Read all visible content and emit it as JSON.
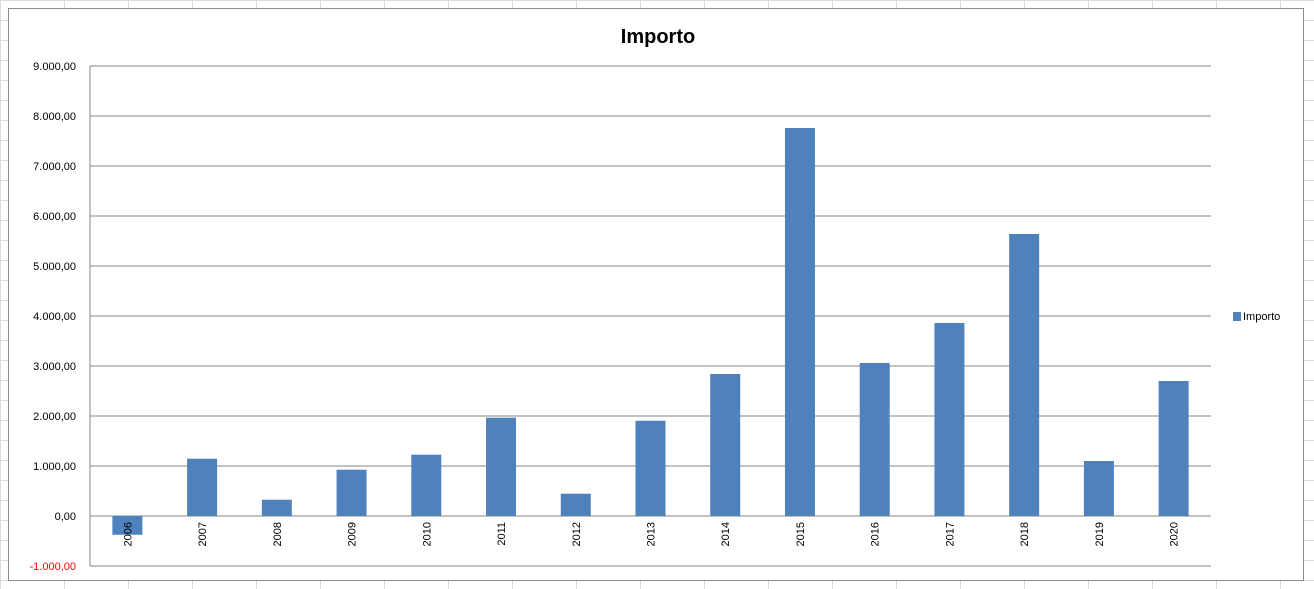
{
  "chart_data": {
    "type": "bar",
    "title": "Importo",
    "xlabel": "",
    "ylabel": "",
    "categories": [
      "2006",
      "2007",
      "2008",
      "2009",
      "2010",
      "2011",
      "2012",
      "2013",
      "2014",
      "2015",
      "2016",
      "2017",
      "2018",
      "2019",
      "2020"
    ],
    "series": [
      {
        "name": "Importo",
        "color": "#4f81bd",
        "values": [
          -375,
          1146,
          326,
          926,
          1226,
          1966,
          446,
          1906,
          2840,
          7760,
          3060,
          3860,
          5640,
          1100,
          2700
        ]
      }
    ],
    "ylim": [
      -1000,
      9000
    ],
    "yticks": [
      -1000,
      0,
      1000,
      2000,
      3000,
      4000,
      5000,
      6000,
      7000,
      8000,
      9000
    ],
    "ytick_labels": [
      "-1.000,00",
      "0,00",
      "1.000,00",
      "2.000,00",
      "3.000,00",
      "4.000,00",
      "5.000,00",
      "6.000,00",
      "7.000,00",
      "8.000,00",
      "9.000,00"
    ],
    "negative_label_color": "#ff0000",
    "grid": true,
    "legend": "right"
  }
}
